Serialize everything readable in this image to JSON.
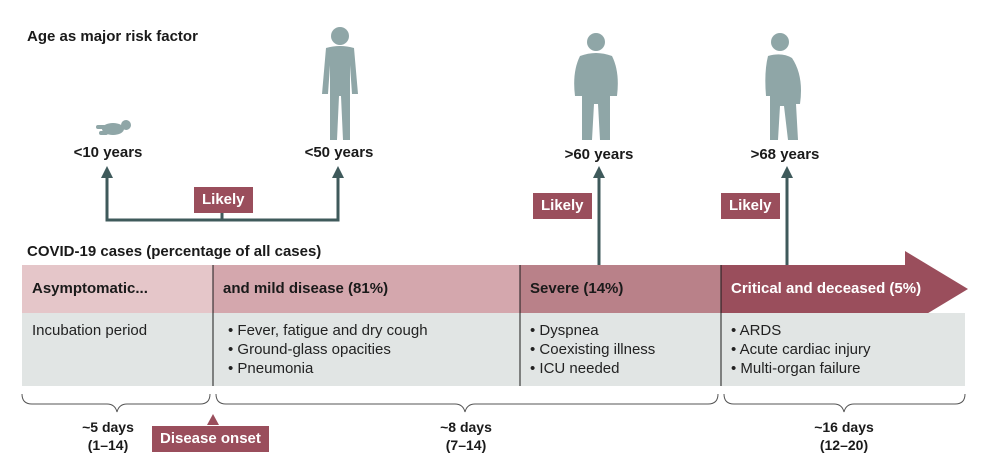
{
  "title": "Age as major risk factor",
  "ages": [
    {
      "label": "<10 years"
    },
    {
      "label": "<50 years"
    },
    {
      "label": ">60 years"
    },
    {
      "label": ">68 years"
    }
  ],
  "likely_label": "Likely",
  "cases_title": "COVID-19 cases (percentage of all cases)",
  "stages": [
    {
      "title": "Asymptomatic...",
      "items": [],
      "text": "Incubation period"
    },
    {
      "title": "and mild disease (81%)",
      "items": [
        "Fever, fatigue and dry cough",
        "Ground-glass opacities",
        "Pneumonia"
      ]
    },
    {
      "title": "Severe (14%)",
      "items": [
        "Dyspnea",
        "Coexisting illness",
        "ICU needed"
      ]
    },
    {
      "title": "Critical and deceased (5%)",
      "items": [
        "ARDS",
        "Acute cardiac injury",
        "Multi-organ failure"
      ]
    }
  ],
  "durations": [
    {
      "main": "~5 days",
      "range": "(1–14)"
    },
    {
      "main": "~8 days",
      "range": "(7–14)"
    },
    {
      "main": "~16 days",
      "range": "(12–20)"
    }
  ],
  "onset_label": "Disease onset",
  "colors": {
    "stage1": "#e5c6c9",
    "stage2": "#d4a7ad",
    "stage3": "#b98189",
    "stage4": "#9a4e5c",
    "body_bg": "#e1e5e4",
    "figure": "#8fa6a7",
    "line": "#3f5a5b"
  }
}
